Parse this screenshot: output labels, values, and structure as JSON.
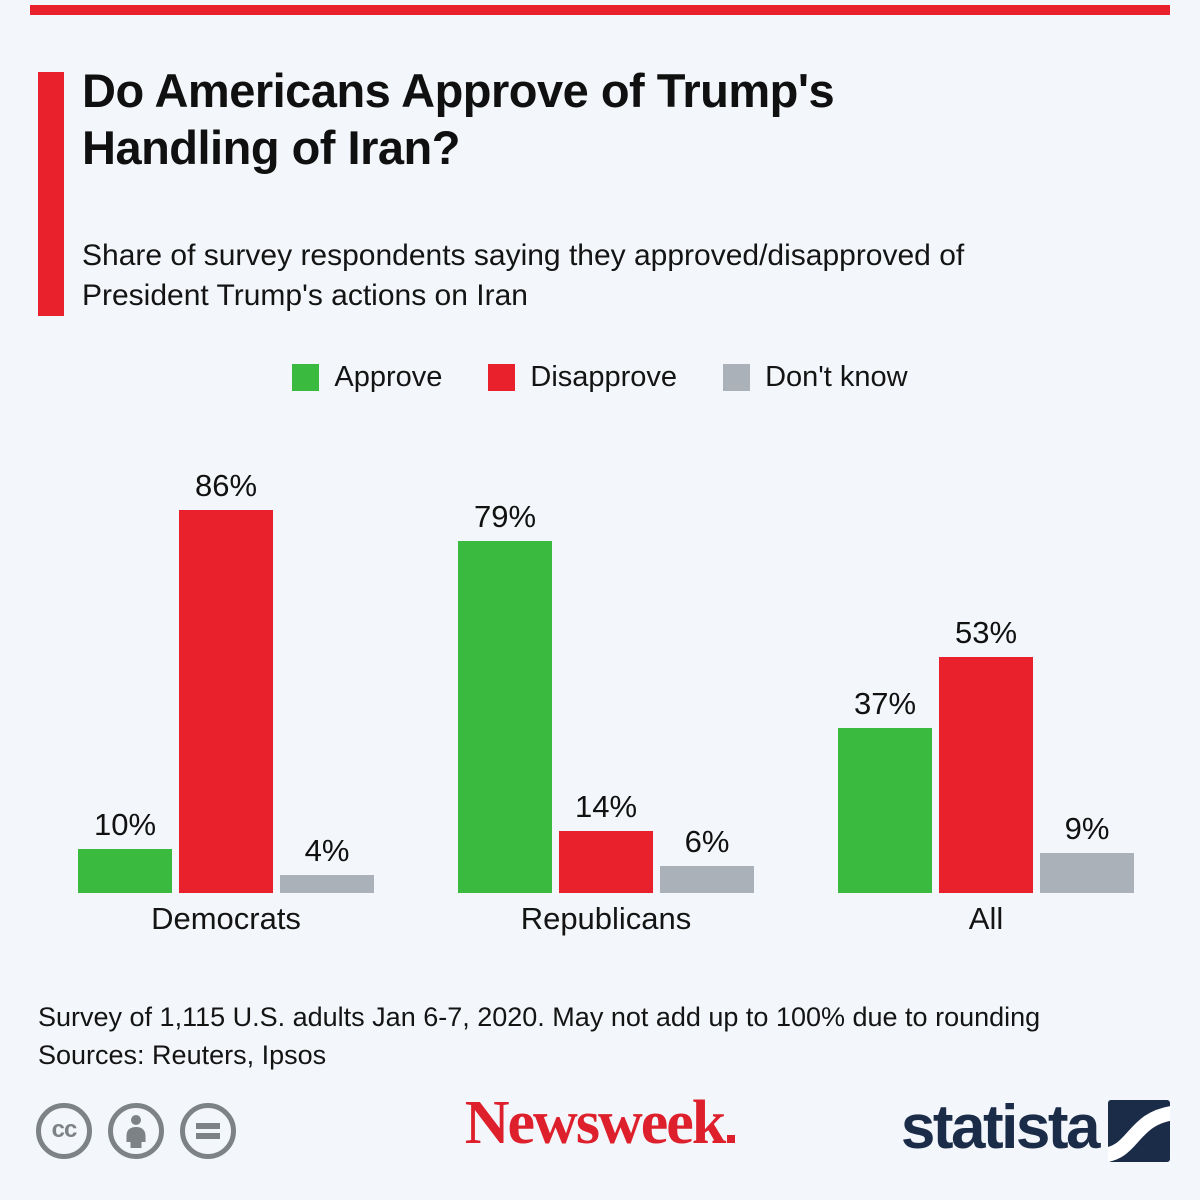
{
  "meta": {
    "background_color": "#f3f6fa",
    "accent_color": "#e9212d"
  },
  "header": {
    "title": "Do Americans Approve of Trump's Handling of Iran?",
    "subtitle": "Share of survey respondents saying they approved/disapproved of President Trump's actions on Iran"
  },
  "chart_data": {
    "type": "bar",
    "title": "Do Americans Approve of Trump's Handling of Iran?",
    "categories": [
      "Democrats",
      "Republicans",
      "All"
    ],
    "series": [
      {
        "name": "Approve",
        "color": "#3abb40",
        "values": [
          10,
          79,
          37
        ]
      },
      {
        "name": "Disapprove",
        "color": "#e9212d",
        "values": [
          86,
          14,
          53
        ]
      },
      {
        "name": "Don't know",
        "color": "#abb1b8",
        "values": [
          4,
          6,
          9
        ]
      }
    ],
    "unit": "%",
    "ylim": [
      0,
      100
    ],
    "grid": false,
    "value_labels": true,
    "legend_position": "top"
  },
  "footer": {
    "note": "Survey of 1,115 U.S. adults Jan 6-7, 2020. May not add up to 100% due to rounding",
    "sources": "Sources: Reuters, Ipsos"
  },
  "branding": {
    "license_icons": [
      "cc-icon",
      "attribution-person-icon",
      "equals-icon"
    ],
    "cc_label": "cc",
    "newsweek_text": "Newsweek",
    "newsweek_color": "#dd202c",
    "statista_text": "statista",
    "statista_color": "#1b2c49"
  }
}
